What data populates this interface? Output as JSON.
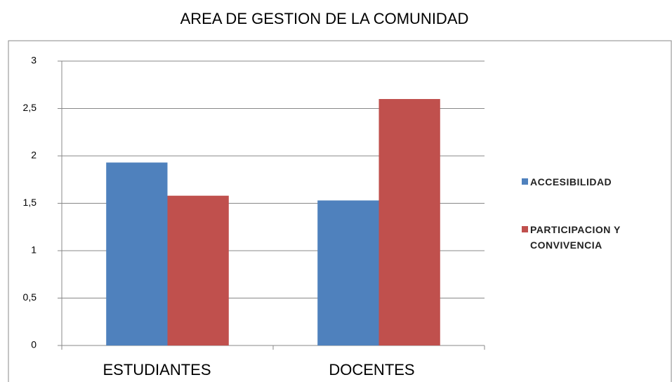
{
  "chart_data": {
    "type": "bar",
    "title": "AREA DE GESTION DE LA COMUNIDAD",
    "categories": [
      "ESTUDIANTES",
      "DOCENTES"
    ],
    "series": [
      {
        "name": "ACCESIBILIDAD",
        "color": "#4f81bd",
        "values": [
          1.93,
          1.53
        ]
      },
      {
        "name": "PARTICIPACION Y CONVIVENCIA",
        "color": "#c0504d",
        "values": [
          1.58,
          2.6
        ]
      }
    ],
    "ylim": [
      0,
      3
    ],
    "yticks": [
      0,
      {
        "value": 0.5,
        "label": "0,5"
      },
      1,
      {
        "value": 1.5,
        "label": "1,5"
      },
      2,
      {
        "value": 2.5,
        "label": "2,5"
      },
      3
    ],
    "grid": true,
    "legend": "right"
  }
}
